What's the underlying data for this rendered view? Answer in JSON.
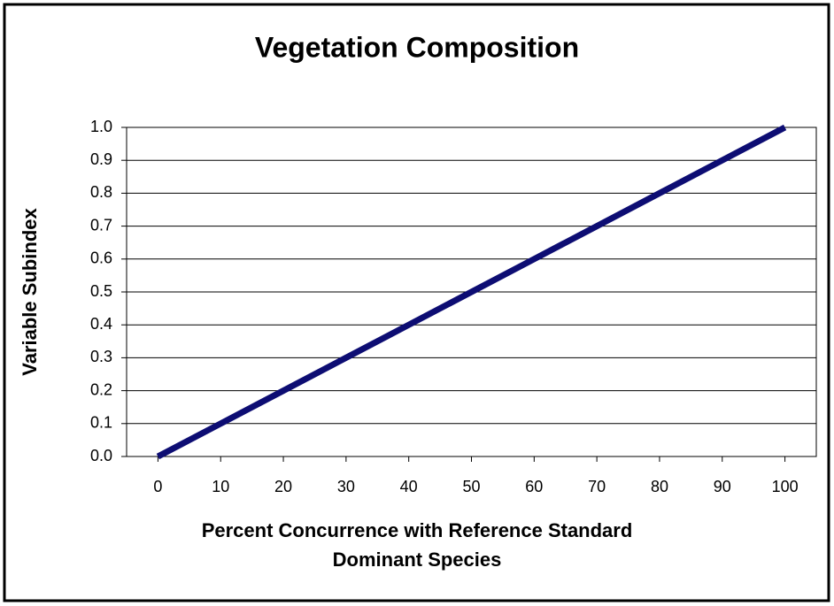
{
  "chart_data": {
    "type": "line",
    "title": "Vegetation Composition",
    "xlabel": [
      "Percent Concurrence with Reference Standard",
      "Dominant Species"
    ],
    "ylabel": "Variable Subindex",
    "x": [
      0,
      10,
      20,
      30,
      40,
      50,
      60,
      70,
      80,
      90,
      100
    ],
    "series": [
      {
        "name": "Vegetation Composition",
        "color": "#0d0d73",
        "values": [
          0,
          0.1,
          0.2,
          0.3,
          0.4,
          0.5,
          0.6,
          0.7,
          0.8,
          0.9,
          1
        ]
      }
    ],
    "xlim": [
      -5,
      105
    ],
    "xticks": [
      0,
      10,
      20,
      30,
      40,
      50,
      60,
      70,
      80,
      90,
      100
    ],
    "ylim": [
      0,
      1
    ],
    "yticks": [
      {
        "value": 0,
        "label": "0.0"
      },
      0.1,
      0.2,
      0.3,
      0.4,
      0.5,
      0.6,
      0.7,
      0.8,
      0.9,
      {
        "value": 1,
        "label": "1.0"
      }
    ],
    "grid": true
  }
}
